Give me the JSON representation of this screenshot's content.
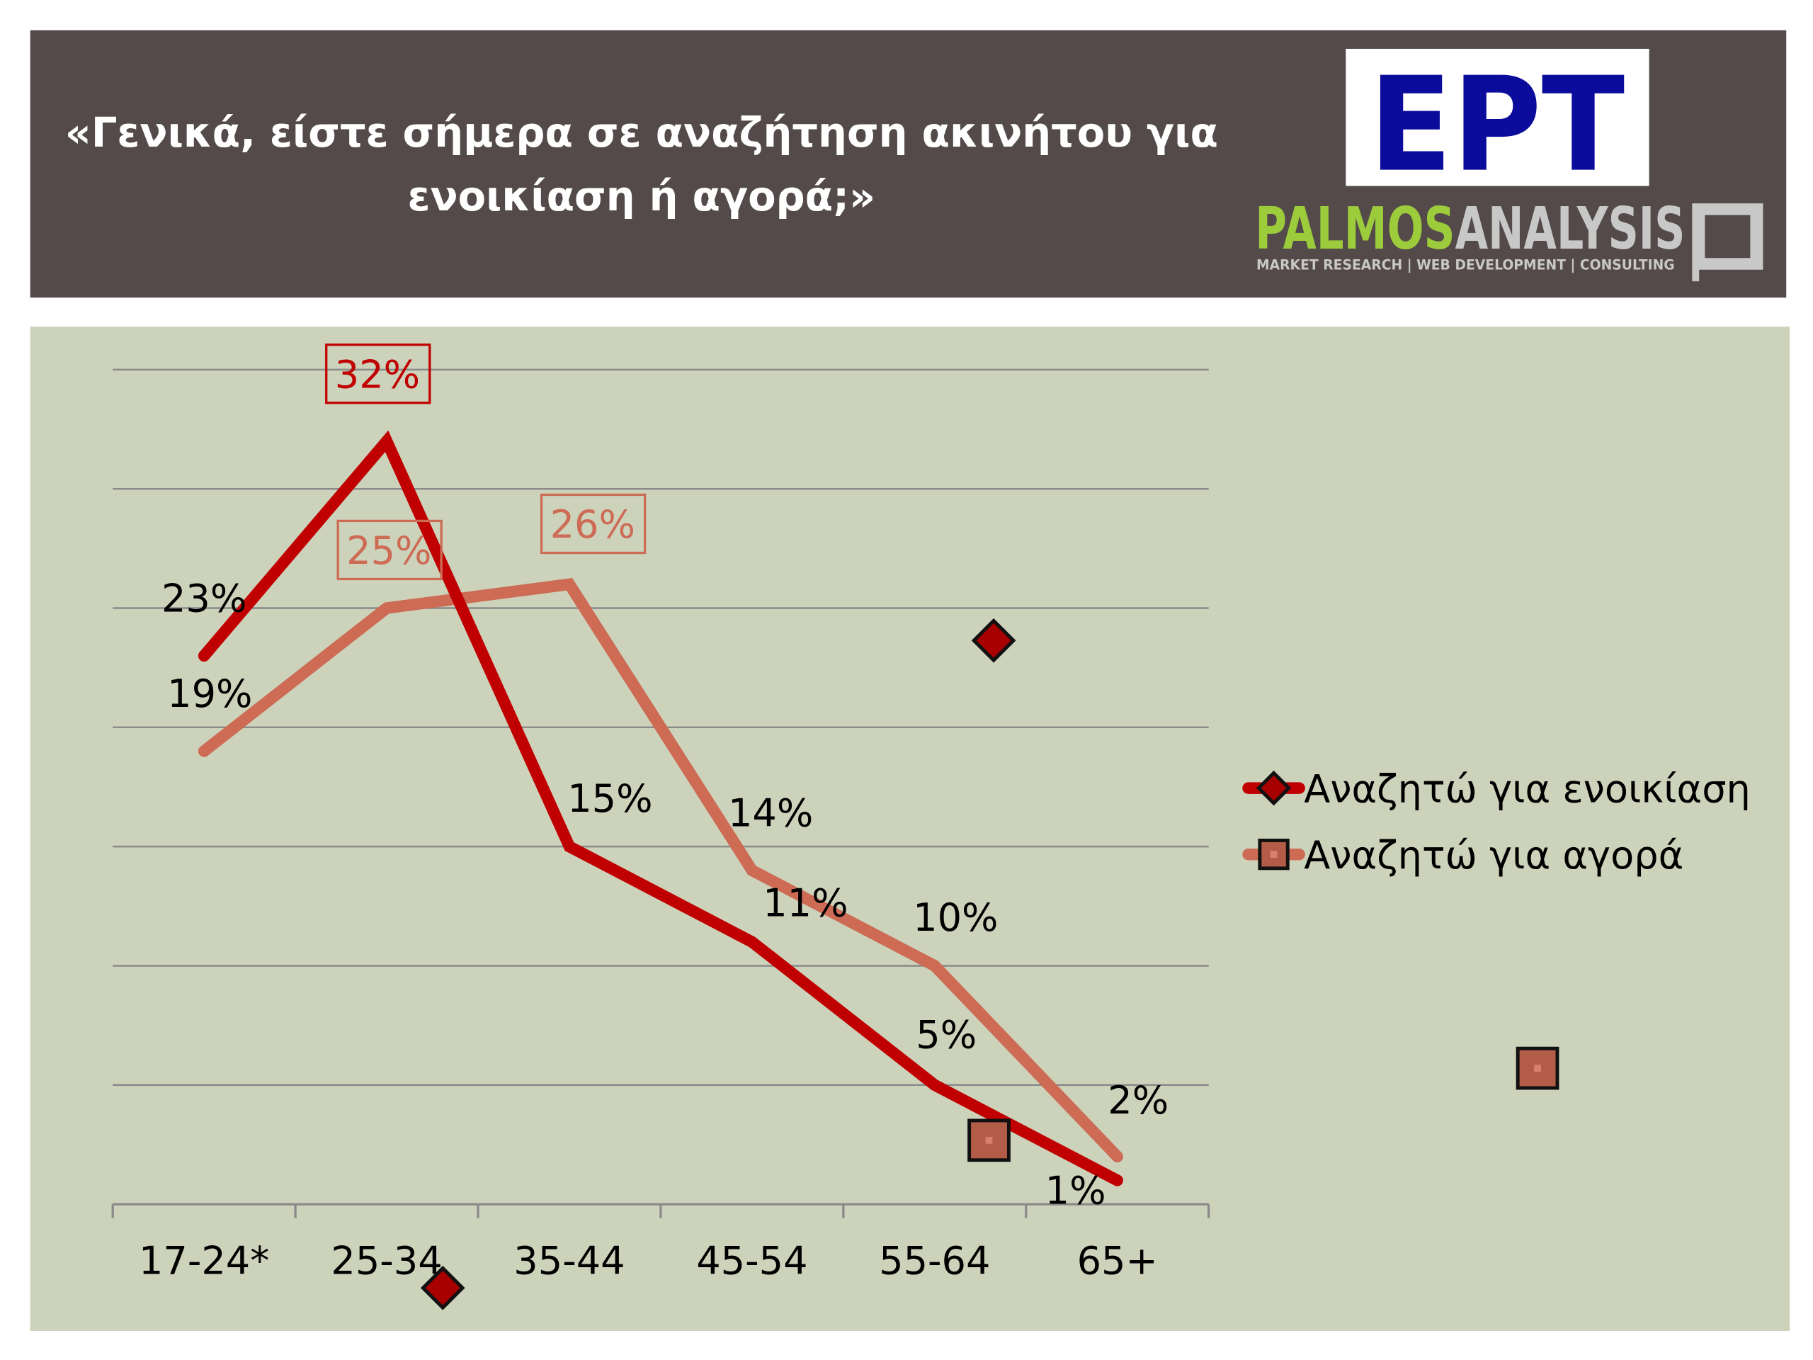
{
  "header": {
    "title_lines": [
      "«Γενικά, είστε σήμερα σε αναζήτηση ακινήτου για",
      "ενοικίαση ή αγορά;»"
    ],
    "background": "#534a49",
    "logo_ert": "ΕΡΤ",
    "logo_palmos": "PALMOS",
    "logo_analysis": "ANALYSIS",
    "logo_tagline": "MARKET RESEARCH | WEB DEVELOPMENT | CONSULTING"
  },
  "chart_data": {
    "type": "line",
    "title": "",
    "xlabel": "",
    "ylabel": "",
    "categories": [
      "17-24*",
      "25-34",
      "35-44",
      "45-54",
      "55-64",
      "65+"
    ],
    "ylim": [
      0,
      35
    ],
    "grid": true,
    "legend_placement": "right",
    "background": "#cdd2bb",
    "series": [
      {
        "name": "Αναζητώ για ενοικίαση",
        "values": [
          23,
          32,
          15,
          11,
          5,
          1
        ],
        "labels": [
          "23%",
          "32%",
          "15%",
          "11%",
          "5%",
          "1%"
        ],
        "color": "#c00000",
        "marker": "diamond"
      },
      {
        "name": "Αναζητώ για αγορά",
        "values": [
          19,
          25,
          26,
          14,
          10,
          2
        ],
        "labels": [
          "19%",
          "25%",
          "26%",
          "14%",
          "10%",
          "2%"
        ],
        "color": "#cd6b55",
        "marker": "square"
      }
    ]
  }
}
